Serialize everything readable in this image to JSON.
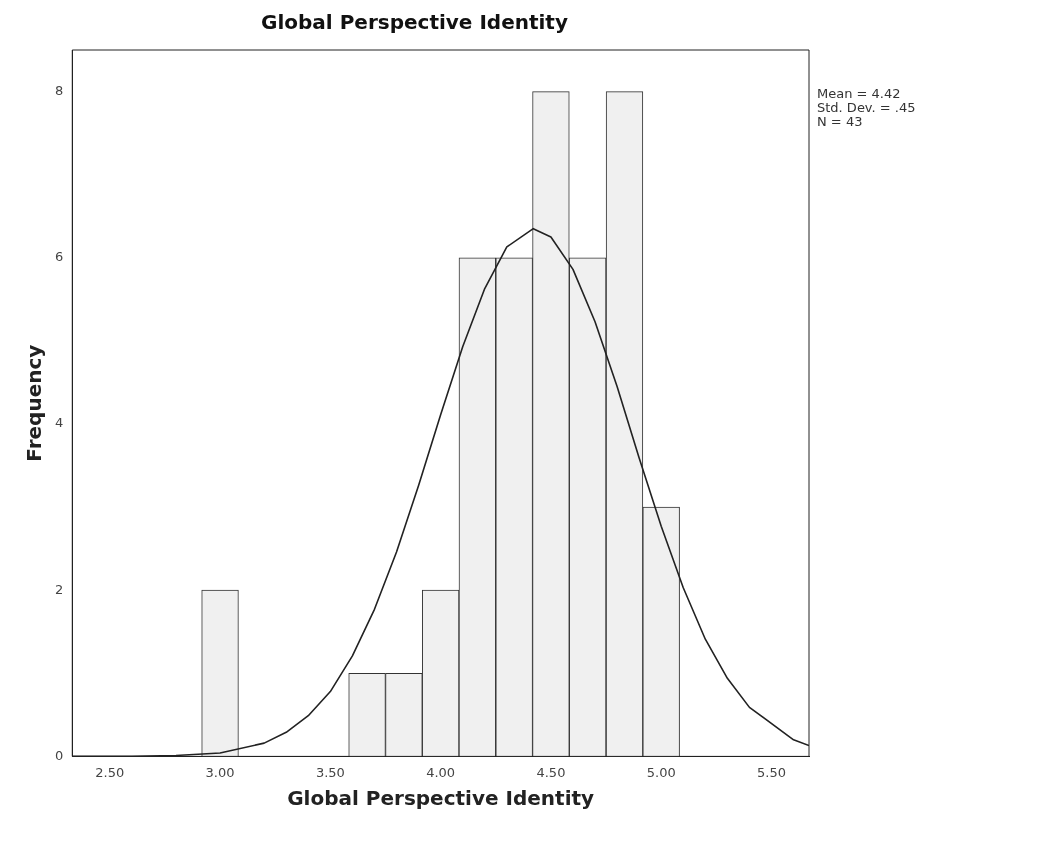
{
  "chart_data": {
    "type": "histogram",
    "title": "Global Perspective Identity",
    "xlabel": "Global Perspective Identity",
    "ylabel": "Frequency",
    "bins": [
      2.917,
      3.083,
      3.25,
      3.417,
      3.583,
      3.75,
      3.917,
      4.083,
      4.25,
      4.417,
      4.583,
      4.75,
      4.917,
      5.083
    ],
    "values": [
      2,
      0,
      0,
      0,
      1,
      1,
      2,
      6,
      6,
      8,
      6,
      8,
      3
    ],
    "color": "#f0f0f0",
    "series": [
      {
        "type": "line",
        "color": "#222222",
        "x": [
          2.33,
          2.6,
          2.8,
          3.0,
          3.2,
          3.3,
          3.4,
          3.5,
          3.6,
          3.7,
          3.8,
          3.9,
          4.0,
          4.1,
          4.2,
          4.3,
          4.42,
          4.5,
          4.6,
          4.7,
          4.8,
          4.9,
          5.0,
          5.1,
          5.2,
          5.3,
          5.4,
          5.6,
          5.67
        ],
        "values": [
          0,
          0,
          0.01,
          0.04,
          0.16,
          0.29,
          0.49,
          0.78,
          1.21,
          1.77,
          2.46,
          3.26,
          4.11,
          4.93,
          5.63,
          6.13,
          6.35,
          6.25,
          5.86,
          5.23,
          4.45,
          3.59,
          2.77,
          2.03,
          1.41,
          0.94,
          0.59,
          0.2,
          0.13
        ]
      }
    ],
    "xlim": [
      2.33,
      5.67
    ],
    "xticks": [
      {
        "value": 2.5,
        "label": "2.50"
      },
      {
        "value": 3,
        "label": "3.00"
      },
      {
        "value": 3.5,
        "label": "3.50"
      },
      {
        "value": 4,
        "label": "4.00"
      },
      {
        "value": 4.5,
        "label": "4.50"
      },
      {
        "value": 5,
        "label": "5.00"
      },
      {
        "value": 5.5,
        "label": "5.50"
      }
    ],
    "ylim": [
      0,
      8.5
    ],
    "yticks": [
      0,
      2,
      4,
      6,
      8
    ],
    "grid": false,
    "legend": false,
    "marker": "none",
    "annotations": [
      "Mean = 4.42",
      "Std. Dev. = .45",
      "N = 43"
    ]
  }
}
